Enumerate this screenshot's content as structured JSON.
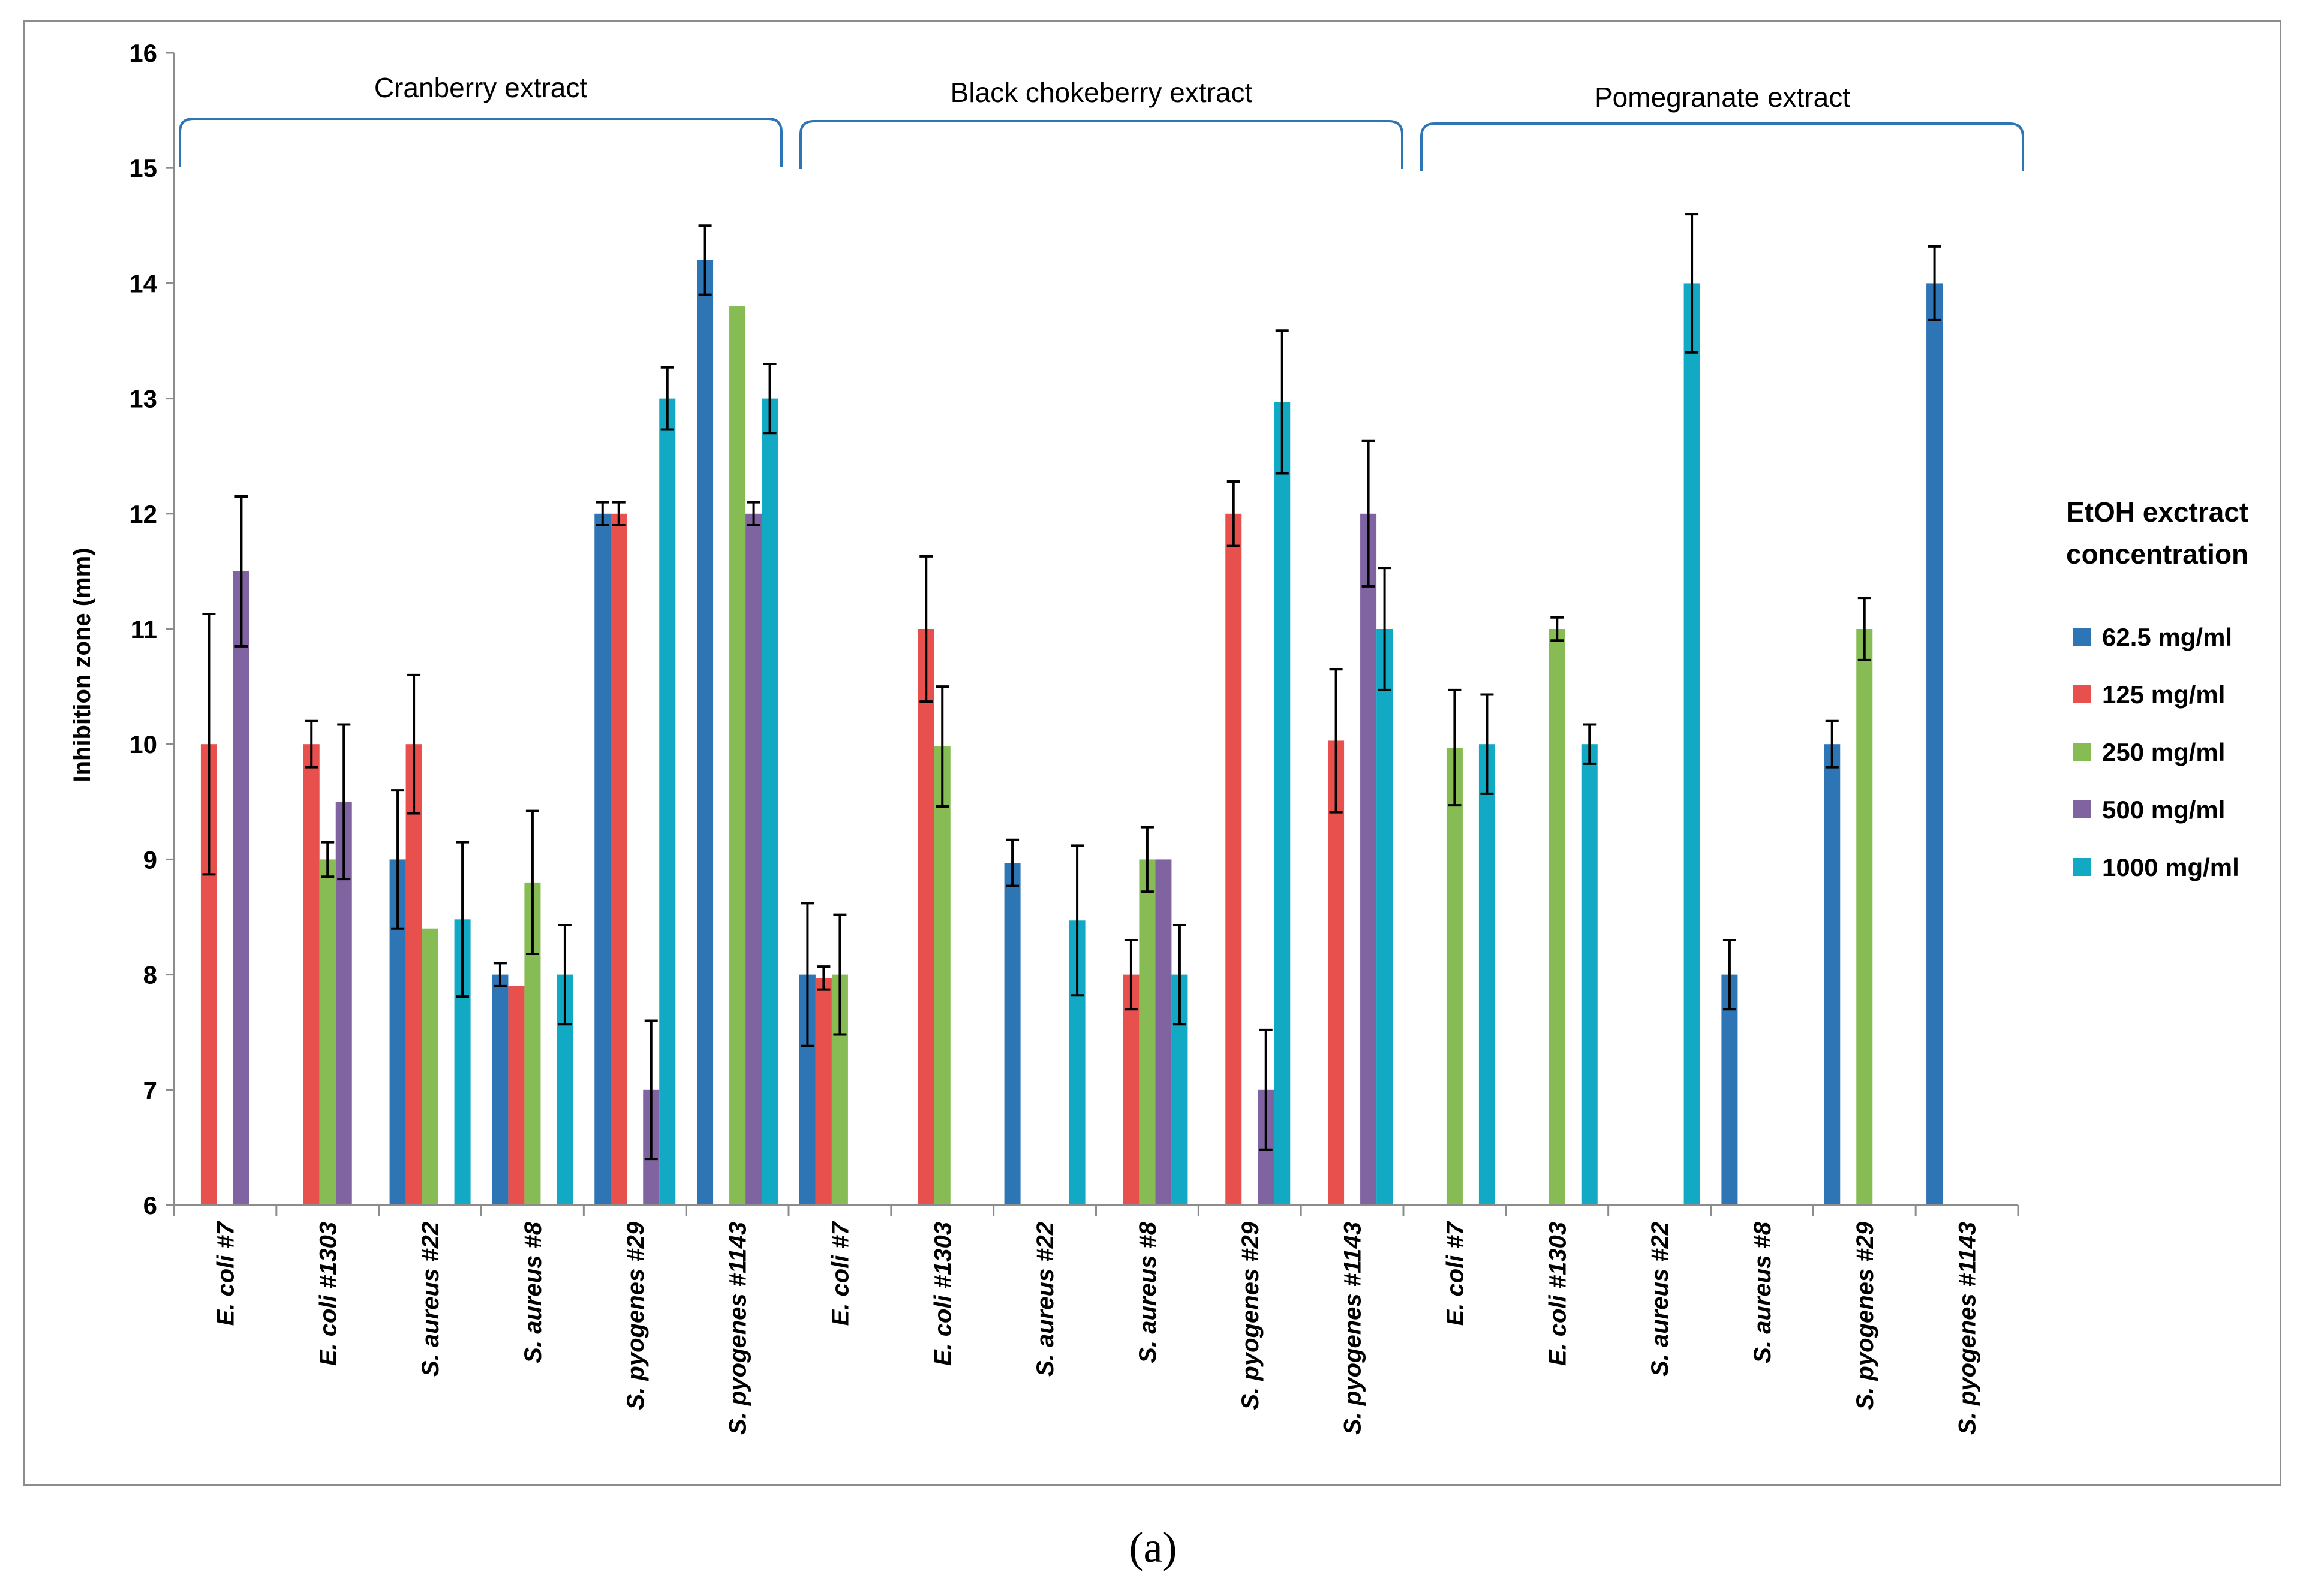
{
  "chart_data": {
    "type": "bar",
    "ylabel": "Inhibition zone (mm)",
    "ylim": [
      6,
      16
    ],
    "yticks": [
      6,
      7,
      8,
      9,
      10,
      11,
      12,
      13,
      14,
      15,
      16
    ],
    "categories": [
      "E. coli #7",
      "E. coli #1303",
      "S. aureus #22",
      "S. aureus #8",
      "S. pyogenes #29",
      "S. pyogenes #1143",
      "E. coli #7",
      "E. coli #1303",
      "S. aureus #22",
      "S. aureus #8",
      "S. pyogenes #29",
      "S. pyogenes #1143",
      "E. coli #7",
      "E. coli #1303",
      "S. aureus #22",
      "S. aureus #8",
      "S. pyogenes #29",
      "S. pyogenes #1143"
    ],
    "groups": [
      {
        "label": "Cranberry extract",
        "start": 0,
        "end": 5
      },
      {
        "label": "Black chokeberry extract",
        "start": 6,
        "end": 11
      },
      {
        "label": "Pomegranate extract",
        "start": 12,
        "end": 17
      }
    ],
    "legend_title": [
      "EtOH exctract",
      "concentration"
    ],
    "series": [
      {
        "name": "62.5 mg/ml",
        "color": "#2E75B6",
        "values": [
          null,
          null,
          9.0,
          8.0,
          12.0,
          14.2,
          8.0,
          null,
          8.97,
          null,
          null,
          null,
          null,
          null,
          null,
          8.0,
          10.0,
          14.0
        ],
        "errors": [
          null,
          null,
          0.6,
          0.1,
          0.1,
          0.3,
          0.62,
          null,
          0.2,
          null,
          null,
          null,
          null,
          null,
          null,
          0.3,
          0.2,
          0.32
        ]
      },
      {
        "name": "125 mg/ml",
        "color": "#E8504D",
        "values": [
          10.0,
          10.0,
          10.0,
          7.9,
          12.0,
          null,
          7.97,
          11.0,
          null,
          8.0,
          12.0,
          10.03,
          null,
          null,
          null,
          null,
          null,
          null
        ],
        "errors": [
          1.13,
          0.2,
          0.6,
          0.0,
          0.1,
          null,
          0.1,
          0.63,
          null,
          0.3,
          0.28,
          0.62,
          null,
          null,
          null,
          null,
          null,
          null
        ]
      },
      {
        "name": "250 mg/ml",
        "color": "#86BC53",
        "values": [
          null,
          9.0,
          8.4,
          8.8,
          null,
          13.8,
          8.0,
          9.98,
          null,
          9.0,
          null,
          null,
          9.97,
          11.0,
          null,
          null,
          11.0,
          null
        ],
        "errors": [
          null,
          0.15,
          0.0,
          0.62,
          null,
          0.0,
          0.52,
          0.52,
          null,
          0.28,
          null,
          null,
          0.5,
          0.1,
          null,
          null,
          0.27,
          null
        ]
      },
      {
        "name": "500 mg/ml",
        "color": "#8064A2",
        "values": [
          11.5,
          9.5,
          null,
          null,
          7.0,
          12.0,
          null,
          null,
          null,
          9.0,
          7.0,
          12.0,
          null,
          null,
          null,
          null,
          null,
          null
        ],
        "errors": [
          0.65,
          0.67,
          null,
          null,
          0.6,
          0.1,
          null,
          null,
          null,
          0.0,
          0.52,
          0.63,
          null,
          null,
          null,
          null,
          null,
          null
        ]
      },
      {
        "name": "1000 mg/ml",
        "color": "#12A9C4",
        "values": [
          null,
          null,
          8.48,
          8.0,
          13.0,
          13.0,
          null,
          null,
          8.47,
          8.0,
          12.97,
          11.0,
          10.0,
          10.0,
          14.0,
          null,
          null,
          null
        ],
        "errors": [
          null,
          null,
          0.67,
          0.43,
          0.27,
          0.3,
          null,
          null,
          0.65,
          0.43,
          0.62,
          0.53,
          0.43,
          0.17,
          0.6,
          null,
          null,
          null
        ]
      }
    ]
  },
  "panel_label": "(a)"
}
